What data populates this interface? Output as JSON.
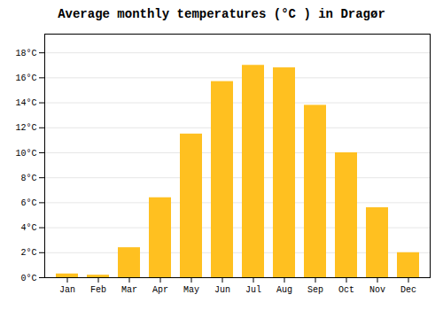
{
  "chart_data": {
    "type": "bar",
    "title": "Average monthly temperatures (°C ) in Dragør",
    "categories": [
      "Jan",
      "Feb",
      "Mar",
      "Apr",
      "May",
      "Jun",
      "Jul",
      "Aug",
      "Sep",
      "Oct",
      "Nov",
      "Dec"
    ],
    "values": [
      0.3,
      0.2,
      2.4,
      6.4,
      11.5,
      15.7,
      17.0,
      16.8,
      13.8,
      10.0,
      5.6,
      2.0
    ],
    "color": "#FFC020",
    "ylim": [
      0,
      19.5
    ],
    "yticks": [
      {
        "value": 0,
        "label": "0°C"
      },
      {
        "value": 2,
        "label": "2°C"
      },
      {
        "value": 4,
        "label": "4°C"
      },
      {
        "value": 6,
        "label": "6°C"
      },
      {
        "value": 8,
        "label": "8°C"
      },
      {
        "value": 10,
        "label": "10°C"
      },
      {
        "value": 12,
        "label": "12°C"
      },
      {
        "value": 14,
        "label": "14°C"
      },
      {
        "value": 16,
        "label": "16°C"
      },
      {
        "value": 18,
        "label": "18°C"
      }
    ],
    "grid": true
  }
}
